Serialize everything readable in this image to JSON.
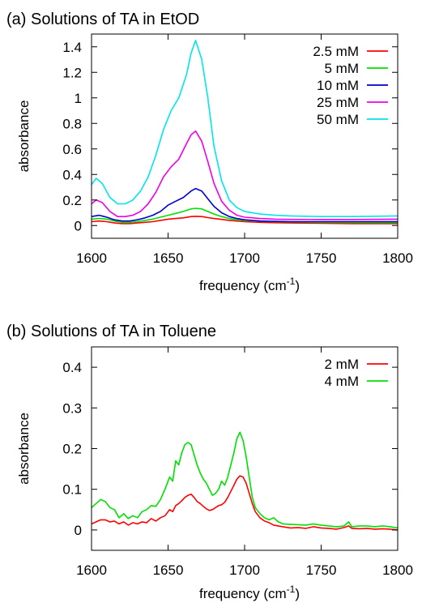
{
  "chart_data": [
    {
      "type": "line",
      "title": "(a) Solutions of TA in EtOD",
      "xlabel": "frequency (cm",
      "xlabel_sup": "-1",
      "xlabel_end": ")",
      "ylabel": "absorbance",
      "xlim": [
        1600,
        1800
      ],
      "ylim": [
        -0.1,
        1.5
      ],
      "x_ticks": [
        1600,
        1650,
        1700,
        1750,
        1800
      ],
      "x_tick_labels": [
        "1600",
        "1650",
        "1700",
        "1750",
        "1800"
      ],
      "y_ticks": [
        0,
        0.2,
        0.4,
        0.6,
        0.8,
        1,
        1.2,
        1.4
      ],
      "y_tick_labels": [
        "0",
        "0.2",
        "0.4",
        "0.6",
        "0.8",
        "1",
        "1.2",
        "1.4"
      ],
      "grid": false,
      "legend_position": "top-right",
      "series": [
        {
          "name": "2.5 mM",
          "color": "#ff0000",
          "x": [
            1600,
            1605,
            1610,
            1615,
            1620,
            1625,
            1630,
            1635,
            1640,
            1645,
            1650,
            1655,
            1660,
            1665,
            1668,
            1672,
            1676,
            1680,
            1685,
            1690,
            1695,
            1700,
            1710,
            1720,
            1730,
            1750,
            1770,
            1800
          ],
          "y": [
            0.03,
            0.035,
            0.03,
            0.02,
            0.015,
            0.015,
            0.02,
            0.025,
            0.03,
            0.04,
            0.05,
            0.055,
            0.06,
            0.07,
            0.072,
            0.07,
            0.062,
            0.055,
            0.048,
            0.04,
            0.035,
            0.03,
            0.025,
            0.022,
            0.02,
            0.018,
            0.015,
            0.015
          ]
        },
        {
          "name": "5 mM",
          "color": "#00e000",
          "x": [
            1600,
            1605,
            1610,
            1615,
            1620,
            1625,
            1630,
            1635,
            1640,
            1645,
            1650,
            1655,
            1660,
            1665,
            1668,
            1672,
            1676,
            1680,
            1685,
            1690,
            1695,
            1700,
            1710,
            1720,
            1730,
            1750,
            1770,
            1800
          ],
          "y": [
            0.05,
            0.055,
            0.05,
            0.035,
            0.025,
            0.025,
            0.03,
            0.04,
            0.05,
            0.065,
            0.08,
            0.095,
            0.11,
            0.13,
            0.135,
            0.13,
            0.11,
            0.09,
            0.07,
            0.055,
            0.045,
            0.04,
            0.035,
            0.03,
            0.028,
            0.025,
            0.023,
            0.022
          ]
        },
        {
          "name": "10 mM",
          "color": "#0000cc",
          "x": [
            1600,
            1605,
            1610,
            1615,
            1620,
            1625,
            1630,
            1635,
            1640,
            1645,
            1650,
            1655,
            1660,
            1665,
            1668,
            1672,
            1676,
            1680,
            1685,
            1690,
            1695,
            1700,
            1710,
            1720,
            1730,
            1750,
            1770,
            1800
          ],
          "y": [
            0.07,
            0.08,
            0.065,
            0.045,
            0.035,
            0.035,
            0.045,
            0.06,
            0.08,
            0.11,
            0.16,
            0.19,
            0.22,
            0.27,
            0.29,
            0.27,
            0.21,
            0.15,
            0.1,
            0.07,
            0.055,
            0.045,
            0.035,
            0.032,
            0.03,
            0.03,
            0.03,
            0.03
          ]
        },
        {
          "name": "25 mM",
          "color": "#ee00ee",
          "x": [
            1600,
            1603,
            1607,
            1612,
            1617,
            1622,
            1627,
            1632,
            1637,
            1642,
            1647,
            1652,
            1657,
            1662,
            1665,
            1668,
            1672,
            1676,
            1680,
            1685,
            1690,
            1695,
            1700,
            1710,
            1720,
            1730,
            1750,
            1770,
            1800
          ],
          "y": [
            0.17,
            0.2,
            0.18,
            0.11,
            0.07,
            0.07,
            0.08,
            0.11,
            0.17,
            0.26,
            0.38,
            0.46,
            0.52,
            0.64,
            0.71,
            0.74,
            0.66,
            0.5,
            0.33,
            0.19,
            0.12,
            0.08,
            0.065,
            0.055,
            0.05,
            0.048,
            0.047,
            0.047,
            0.05
          ]
        },
        {
          "name": "50 mM",
          "color": "#00e5ee",
          "x": [
            1600,
            1603,
            1607,
            1612,
            1617,
            1622,
            1627,
            1632,
            1637,
            1642,
            1647,
            1652,
            1657,
            1662,
            1665,
            1668,
            1672,
            1676,
            1680,
            1685,
            1690,
            1695,
            1700,
            1710,
            1720,
            1730,
            1750,
            1770,
            1800
          ],
          "y": [
            0.32,
            0.37,
            0.33,
            0.22,
            0.17,
            0.17,
            0.2,
            0.27,
            0.38,
            0.55,
            0.75,
            0.9,
            1.0,
            1.18,
            1.35,
            1.45,
            1.3,
            1.0,
            0.62,
            0.35,
            0.2,
            0.14,
            0.11,
            0.09,
            0.08,
            0.075,
            0.07,
            0.07,
            0.075
          ]
        }
      ]
    },
    {
      "type": "line",
      "title": "(b) Solutions of TA in Toluene",
      "xlabel": "frequency (cm",
      "xlabel_sup": "-1",
      "xlabel_end": ")",
      "ylabel": "absorbance",
      "xlim": [
        1600,
        1800
      ],
      "ylim": [
        -0.05,
        0.45
      ],
      "x_ticks": [
        1600,
        1650,
        1700,
        1750,
        1800
      ],
      "x_tick_labels": [
        "1600",
        "1650",
        "1700",
        "1750",
        "1800"
      ],
      "y_ticks": [
        0,
        0.1,
        0.2,
        0.3,
        0.4
      ],
      "y_tick_labels": [
        "0",
        "0.1",
        "0.2",
        "0.3",
        "0.4"
      ],
      "grid": false,
      "legend_position": "top-right",
      "series": [
        {
          "name": "2 mM",
          "color": "#ff0000",
          "x": [
            1600,
            1603,
            1606,
            1609,
            1612,
            1615,
            1618,
            1621,
            1624,
            1627,
            1630,
            1633,
            1636,
            1639,
            1642,
            1645,
            1648,
            1651,
            1653,
            1655,
            1657,
            1659,
            1661,
            1663,
            1665,
            1667,
            1669,
            1671,
            1673,
            1675,
            1677,
            1679,
            1681,
            1683,
            1685,
            1687,
            1689,
            1691,
            1693,
            1695,
            1697,
            1699,
            1701,
            1703,
            1705,
            1707,
            1710,
            1713,
            1716,
            1719,
            1722,
            1725,
            1730,
            1735,
            1740,
            1745,
            1750,
            1755,
            1760,
            1765,
            1768,
            1770,
            1775,
            1780,
            1785,
            1790,
            1795,
            1800
          ],
          "y": [
            0.015,
            0.02,
            0.025,
            0.025,
            0.02,
            0.022,
            0.015,
            0.02,
            0.012,
            0.018,
            0.015,
            0.02,
            0.018,
            0.028,
            0.022,
            0.03,
            0.035,
            0.05,
            0.045,
            0.06,
            0.065,
            0.072,
            0.08,
            0.085,
            0.088,
            0.08,
            0.07,
            0.065,
            0.058,
            0.052,
            0.048,
            0.05,
            0.055,
            0.06,
            0.062,
            0.068,
            0.08,
            0.095,
            0.11,
            0.125,
            0.133,
            0.13,
            0.115,
            0.09,
            0.065,
            0.045,
            0.03,
            0.022,
            0.018,
            0.012,
            0.01,
            0.008,
            0.005,
            0.006,
            0.004,
            0.008,
            0.005,
            0.004,
            0.002,
            0.006,
            0.01,
            0.004,
            0.003,
            0.004,
            0.002,
            0.003,
            0.002,
            0.0
          ]
        },
        {
          "name": "4 mM",
          "color": "#00e000",
          "x": [
            1600,
            1603,
            1606,
            1609,
            1612,
            1615,
            1618,
            1621,
            1624,
            1627,
            1630,
            1633,
            1636,
            1639,
            1642,
            1645,
            1648,
            1651,
            1653,
            1655,
            1657,
            1659,
            1661,
            1663,
            1665,
            1667,
            1669,
            1671,
            1673,
            1675,
            1677,
            1679,
            1681,
            1683,
            1685,
            1687,
            1689,
            1691,
            1693,
            1695,
            1697,
            1699,
            1701,
            1703,
            1705,
            1707,
            1710,
            1713,
            1716,
            1719,
            1722,
            1725,
            1730,
            1735,
            1740,
            1745,
            1750,
            1755,
            1760,
            1765,
            1768,
            1770,
            1775,
            1780,
            1785,
            1790,
            1795,
            1800
          ],
          "y": [
            0.055,
            0.065,
            0.075,
            0.07,
            0.055,
            0.05,
            0.03,
            0.04,
            0.028,
            0.035,
            0.03,
            0.045,
            0.05,
            0.06,
            0.058,
            0.075,
            0.1,
            0.13,
            0.12,
            0.17,
            0.16,
            0.19,
            0.21,
            0.215,
            0.21,
            0.185,
            0.16,
            0.14,
            0.125,
            0.115,
            0.1,
            0.085,
            0.09,
            0.1,
            0.12,
            0.11,
            0.13,
            0.16,
            0.19,
            0.225,
            0.24,
            0.22,
            0.18,
            0.13,
            0.08,
            0.055,
            0.04,
            0.03,
            0.025,
            0.03,
            0.02,
            0.015,
            0.014,
            0.013,
            0.012,
            0.015,
            0.012,
            0.01,
            0.008,
            0.01,
            0.02,
            0.008,
            0.01,
            0.01,
            0.008,
            0.01,
            0.008,
            0.005
          ]
        }
      ]
    }
  ]
}
